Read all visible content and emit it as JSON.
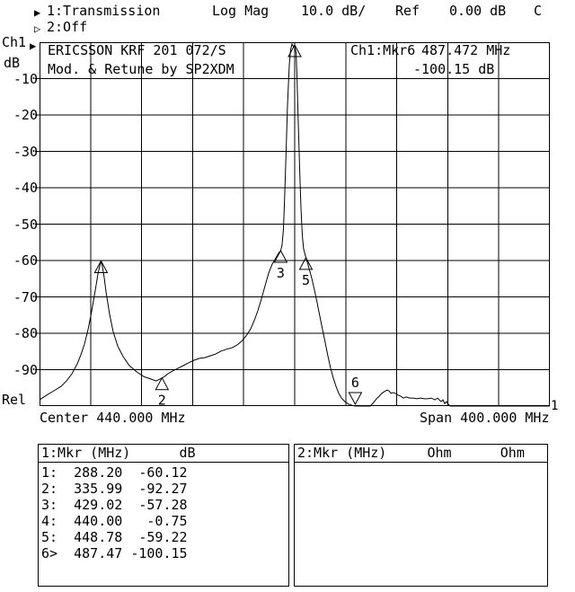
{
  "header": {
    "trace1_indicator": "▶",
    "trace1_label": "1:Transmission",
    "format_label": "Log Mag",
    "scale_label": "10.0 dB/",
    "ref_label": "Ref",
    "ref_value": "0.00 dB",
    "cal_status": "C",
    "trace2_indicator": "▷",
    "trace2_label": "2:Off"
  },
  "y_axis": {
    "channel": "Ch1",
    "unit": "dB",
    "ref_marker": "▶",
    "labels": [
      "-10",
      "-20",
      "-30",
      "-40",
      "-50",
      "-60",
      "-70",
      "-80",
      "-90"
    ],
    "rel_label": "Rel"
  },
  "x_axis": {
    "center_label": "Center 440.000 MHz",
    "span_label": "Span 400.000 MHz",
    "trace_end_marker": "1"
  },
  "annotations": {
    "device_line1": "ERICSSON KRF 201 072/S",
    "device_line2": "Mod. & Retune by SP2XDM",
    "readout_label": "Ch1:Mkr6",
    "readout_freq": "487.472 MHz",
    "readout_level": "-100.15 dB"
  },
  "marker_table_1": {
    "header_col1": "1:Mkr (MHz)",
    "header_col2": "dB",
    "rows": [
      {
        "n": "1:",
        "f": "288.20",
        "v": "-60.12"
      },
      {
        "n": "2:",
        "f": "335.99",
        "v": "-92.27"
      },
      {
        "n": "3:",
        "f": "429.02",
        "v": "-57.28"
      },
      {
        "n": "4:",
        "f": "440.00",
        "v": "-0.75"
      },
      {
        "n": "5:",
        "f": "448.78",
        "v": "-59.22"
      },
      {
        "n": "6>",
        "f": "487.47",
        "v": "-100.15"
      }
    ]
  },
  "marker_table_2": {
    "header_col1": "2:Mkr (MHz)",
    "header_col2": "Ohm",
    "header_col3": "Ohm"
  },
  "chart_data": {
    "type": "line",
    "title": "Ch1 Transmission Log Mag 10.0 dB/ Ref 0.00 dB",
    "xlabel": "Frequency (MHz), Center 440.000 MHz, Span 400.000 MHz",
    "ylabel": "dB",
    "xlim": [
      240,
      640
    ],
    "ylim": [
      -100,
      0
    ],
    "x_divisions": 10,
    "y_divisions": 10,
    "grid": true,
    "legend_position": "none",
    "series_name": "Ch1 Transmission (dB)",
    "markers": [
      {
        "n": "1",
        "f": 288.2,
        "dB": -60.12,
        "dir": "up",
        "show_label": false
      },
      {
        "n": "2",
        "f": 335.99,
        "dB": -92.27,
        "dir": "up",
        "show_label": true
      },
      {
        "n": "3",
        "f": 429.02,
        "dB": -57.28,
        "dir": "up",
        "show_label": true
      },
      {
        "n": "4",
        "f": 440.0,
        "dB": -0.75,
        "dir": "up",
        "show_label": false
      },
      {
        "n": "5",
        "f": 448.78,
        "dB": -59.22,
        "dir": "up",
        "show_label": true
      },
      {
        "n": "6",
        "f": 487.47,
        "dB": -100.15,
        "dir": "down",
        "show_label": true
      }
    ],
    "trace": [
      [
        240,
        -98.3
      ],
      [
        245.6,
        -97
      ],
      [
        251.3,
        -95.8
      ],
      [
        256.9,
        -94.6
      ],
      [
        261.1,
        -93.1
      ],
      [
        265.4,
        -91.1
      ],
      [
        269.6,
        -88.4
      ],
      [
        272.4,
        -85.9
      ],
      [
        275.2,
        -83
      ],
      [
        278,
        -79
      ],
      [
        280.8,
        -74.1
      ],
      [
        283.7,
        -68.1
      ],
      [
        285.8,
        -63.7
      ],
      [
        288.2,
        -60.1
      ],
      [
        289.3,
        -61.7
      ],
      [
        290.7,
        -64.7
      ],
      [
        292.1,
        -68.6
      ],
      [
        294.9,
        -74.8
      ],
      [
        297.7,
        -79.5
      ],
      [
        301.3,
        -83.5
      ],
      [
        305.5,
        -86.4
      ],
      [
        310.4,
        -88.9
      ],
      [
        316.1,
        -90.6
      ],
      [
        321.7,
        -91.9
      ],
      [
        327.3,
        -92.6
      ],
      [
        331.5,
        -93.1
      ],
      [
        336,
        -92.3
      ],
      [
        337.9,
        -91.9
      ],
      [
        340.7,
        -91.1
      ],
      [
        344.2,
        -90.4
      ],
      [
        348.5,
        -89.6
      ],
      [
        352.7,
        -88.9
      ],
      [
        356.9,
        -88.1
      ],
      [
        361.1,
        -87.4
      ],
      [
        365.4,
        -86.9
      ],
      [
        369.6,
        -86.7
      ],
      [
        373.8,
        -86.2
      ],
      [
        378,
        -85.7
      ],
      [
        382.3,
        -84.9
      ],
      [
        386.5,
        -84.4
      ],
      [
        390.7,
        -84
      ],
      [
        394.9,
        -83.2
      ],
      [
        398.4,
        -82.2
      ],
      [
        402,
        -80.7
      ],
      [
        405.5,
        -78.8
      ],
      [
        408.3,
        -76.5
      ],
      [
        411.1,
        -73.8
      ],
      [
        413.9,
        -70.6
      ],
      [
        416.8,
        -66.9
      ],
      [
        419.6,
        -63.5
      ],
      [
        422.4,
        -61
      ],
      [
        425.2,
        -59.3
      ],
      [
        427.3,
        -58
      ],
      [
        429,
        -57.3
      ],
      [
        430.1,
        -55.8
      ],
      [
        431.2,
        -51.4
      ],
      [
        432.2,
        -42
      ],
      [
        433.3,
        -29.6
      ],
      [
        434.4,
        -17.3
      ],
      [
        435.8,
        -6.2
      ],
      [
        436.8,
        -2
      ],
      [
        437.9,
        -0.5
      ],
      [
        439,
        -1.2
      ],
      [
        440,
        -0.75
      ],
      [
        441.1,
        -3
      ],
      [
        441.8,
        -9.9
      ],
      [
        442.8,
        -22.2
      ],
      [
        443.9,
        -34.6
      ],
      [
        444.9,
        -45.7
      ],
      [
        446,
        -53.1
      ],
      [
        447,
        -56.8
      ],
      [
        448.8,
        -59.2
      ],
      [
        449.9,
        -60.5
      ],
      [
        451.3,
        -62.2
      ],
      [
        453.4,
        -64.9
      ],
      [
        455.5,
        -68.1
      ],
      [
        457.6,
        -71.6
      ],
      [
        459.7,
        -75.3
      ],
      [
        461.8,
        -79
      ],
      [
        464,
        -82.7
      ],
      [
        466.1,
        -86.4
      ],
      [
        468.2,
        -89.6
      ],
      [
        470.3,
        -92.3
      ],
      [
        472.4,
        -94.6
      ],
      [
        474.5,
        -96.5
      ],
      [
        476.6,
        -97.8
      ],
      [
        479.4,
        -98.8
      ],
      [
        482.3,
        -99.5
      ],
      [
        485.1,
        -99.8
      ],
      [
        487.5,
        -100.2
      ],
      [
        499.2,
        -100.2
      ],
      [
        502,
        -99
      ],
      [
        504.1,
        -98
      ],
      [
        506.2,
        -97.3
      ],
      [
        508.3,
        -96.5
      ],
      [
        510.4,
        -96
      ],
      [
        512.5,
        -95.6
      ],
      [
        513.9,
        -95.8
      ],
      [
        515.4,
        -96.5
      ],
      [
        516.8,
        -96.3
      ],
      [
        518.9,
        -96.5
      ],
      [
        521,
        -97
      ],
      [
        523.1,
        -97.3
      ],
      [
        525.2,
        -97.8
      ],
      [
        527.3,
        -97.5
      ],
      [
        530.1,
        -97.8
      ],
      [
        533,
        -97.8
      ],
      [
        535.8,
        -98
      ],
      [
        538.6,
        -97.8
      ],
      [
        541.4,
        -98
      ],
      [
        544.2,
        -98
      ],
      [
        547,
        -97.8
      ],
      [
        549.9,
        -98.3
      ],
      [
        552,
        -97.8
      ],
      [
        553.4,
        -98.3
      ],
      [
        554.8,
        -98.8
      ],
      [
        556.2,
        -98.3
      ],
      [
        557.6,
        -99.3
      ],
      [
        559,
        -98.8
      ],
      [
        560.4,
        -99.5
      ],
      [
        561.8,
        -100.2
      ],
      [
        640,
        -100.2
      ]
    ]
  }
}
